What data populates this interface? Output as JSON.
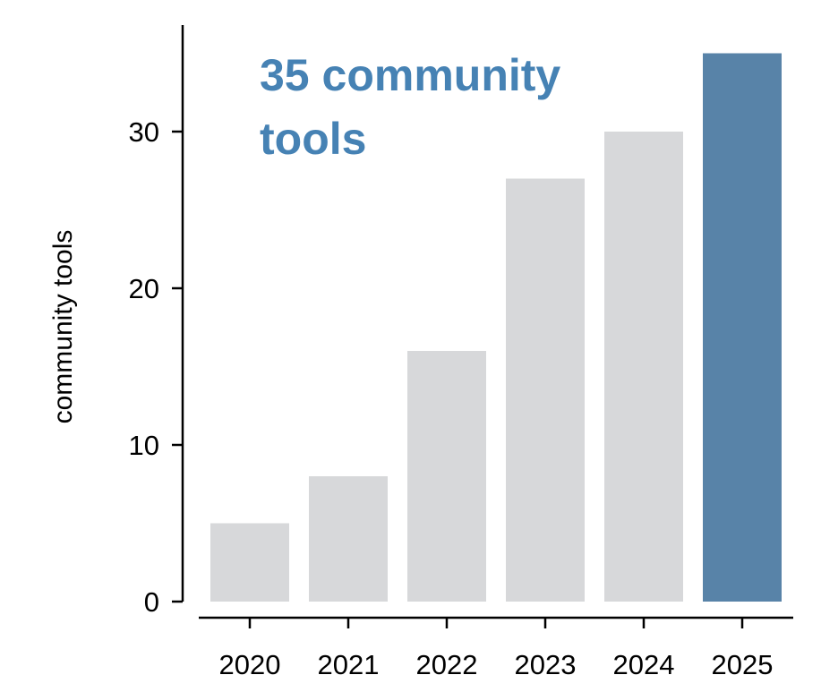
{
  "chart_data": {
    "type": "bar",
    "title": "",
    "xlabel": "",
    "ylabel": "community tools",
    "categories": [
      "2020",
      "2021",
      "2022",
      "2023",
      "2024",
      "2025"
    ],
    "values": [
      5,
      8,
      16,
      27,
      30,
      35
    ],
    "ylim": [
      0,
      37
    ],
    "yticks": [
      0,
      10,
      20,
      30
    ],
    "grid": false,
    "highlight_category": "2025",
    "annotation": [
      "35 community",
      "tools"
    ],
    "colors": {
      "bar": "#d7d8da",
      "highlight": "#5883a8",
      "annotation": "#4682b4",
      "axis": "#000000"
    }
  }
}
